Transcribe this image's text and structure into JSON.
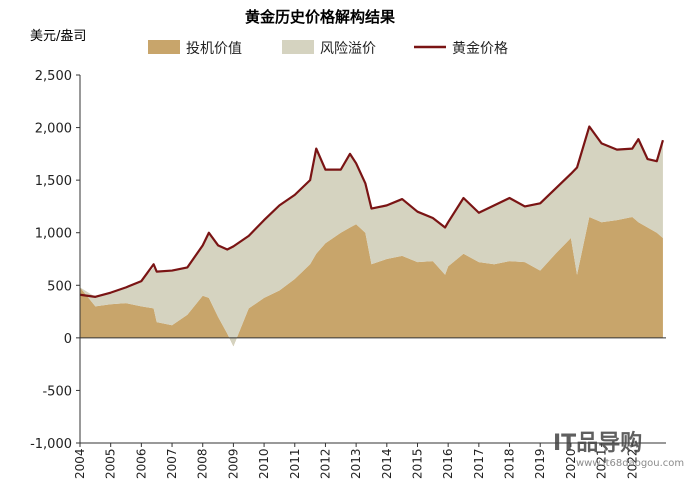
{
  "chart_data": {
    "type": "area",
    "title": "黄金历史价格解构结果",
    "ylabel": "美元/盎司",
    "xlabel": "",
    "ylim": [
      -1000,
      2500
    ],
    "yticks": [
      2500,
      2000,
      1500,
      1000,
      500,
      0,
      -500,
      -1000
    ],
    "ytick_labels": [
      "2,500",
      "2,000",
      "1,500",
      "1,000",
      "500",
      "0",
      "-500",
      "-1,000"
    ],
    "xlim": [
      2004,
      2023.1
    ],
    "xticks": [
      2004,
      2005,
      2006,
      2007,
      2008,
      2009,
      2010,
      2011,
      2012,
      2013,
      2014,
      2015,
      2016,
      2017,
      2018,
      2019,
      2020,
      2021,
      2022
    ],
    "xtick_labels": [
      "2004",
      "2005",
      "2006",
      "2007",
      "2008",
      "2009",
      "2010",
      "2011",
      "2012",
      "2013",
      "2014",
      "2015",
      "2016",
      "2017",
      "2018",
      "2019",
      "2020",
      "2021",
      "2022"
    ],
    "grid": false,
    "legend_position": "top",
    "x": [
      2004.0,
      2004.5,
      2005.0,
      2005.5,
      2006.0,
      2006.4,
      2006.5,
      2007.0,
      2007.5,
      2008.0,
      2008.2,
      2008.5,
      2008.8,
      2009.0,
      2009.5,
      2010.0,
      2010.5,
      2011.0,
      2011.5,
      2011.7,
      2012.0,
      2012.5,
      2012.8,
      2013.0,
      2013.3,
      2013.5,
      2014.0,
      2014.5,
      2015.0,
      2015.5,
      2015.9,
      2016.0,
      2016.5,
      2017.0,
      2017.5,
      2018.0,
      2018.5,
      2019.0,
      2019.5,
      2020.0,
      2020.2,
      2020.6,
      2021.0,
      2021.5,
      2022.0,
      2022.2,
      2022.5,
      2022.8,
      2023.0
    ],
    "series": [
      {
        "name": "投机价值",
        "color": "#c8a56b",
        "values": [
          480,
          300,
          320,
          330,
          300,
          280,
          150,
          120,
          220,
          400,
          380,
          200,
          40,
          -80,
          280,
          380,
          450,
          560,
          700,
          800,
          900,
          1000,
          1050,
          1080,
          1000,
          700,
          750,
          780,
          720,
          730,
          600,
          680,
          800,
          720,
          700,
          730,
          720,
          640,
          800,
          950,
          600,
          1150,
          1100,
          1120,
          1150,
          1100,
          1050,
          1000,
          950
        ]
      },
      {
        "name": "风险溢价",
        "color": "#d5d3c0",
        "values": [
          0,
          90,
          110,
          150,
          240,
          390,
          480,
          520,
          450,
          480,
          620,
          680,
          800,
          950,
          690,
          740,
          810,
          800,
          800,
          1000,
          700,
          600,
          700,
          580,
          470,
          530,
          510,
          540,
          480,
          410,
          450,
          420,
          530,
          470,
          560,
          600,
          530,
          640,
          620,
          610,
          1020,
          860,
          750,
          670,
          650,
          790,
          650,
          680,
          930
        ]
      },
      {
        "name": "黄金价格",
        "color": "#7a1414",
        "values": [
          410,
          390,
          430,
          480,
          540,
          700,
          630,
          640,
          670,
          880,
          1000,
          880,
          840,
          870,
          970,
          1120,
          1260,
          1360,
          1500,
          1800,
          1600,
          1600,
          1750,
          1660,
          1470,
          1230,
          1260,
          1320,
          1200,
          1140,
          1050,
          1100,
          1330,
          1190,
          1260,
          1330,
          1250,
          1280,
          1420,
          1560,
          1620,
          2010,
          1850,
          1790,
          1800,
          1890,
          1700,
          1680,
          1880
        ]
      }
    ]
  },
  "watermark": {
    "brand": "IT品导购",
    "url": "www.lt68daogou.com"
  }
}
